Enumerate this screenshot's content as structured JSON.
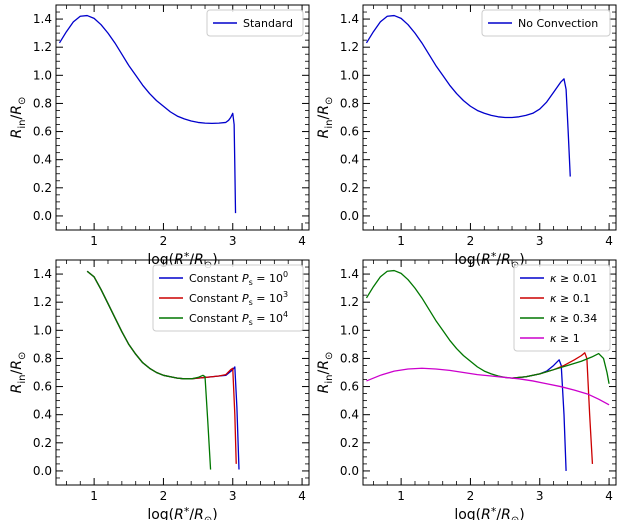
{
  "chart_data": [
    {
      "type": "line",
      "xlabel": "log(R*/R☉)",
      "ylabel": "Rin/R☉",
      "xlim": [
        0.45,
        4.1
      ],
      "ylim": [
        -0.1,
        1.5
      ],
      "xticks": [
        "1",
        "2",
        "3",
        "4"
      ],
      "yticks": [
        "0.0",
        "0.2",
        "0.4",
        "0.6",
        "0.8",
        "1.0",
        "1.2",
        "1.4"
      ],
      "legend_position": "top-right",
      "series": [
        {
          "name": "Standard",
          "color": "#0000cc",
          "points": [
            [
              0.5,
              1.23
            ],
            [
              0.6,
              1.31
            ],
            [
              0.7,
              1.38
            ],
            [
              0.8,
              1.42
            ],
            [
              0.9,
              1.425
            ],
            [
              1.0,
              1.405
            ],
            [
              1.1,
              1.36
            ],
            [
              1.2,
              1.3
            ],
            [
              1.3,
              1.23
            ],
            [
              1.4,
              1.15
            ],
            [
              1.5,
              1.07
            ],
            [
              1.6,
              1.0
            ],
            [
              1.7,
              0.93
            ],
            [
              1.8,
              0.87
            ],
            [
              1.9,
              0.82
            ],
            [
              2.0,
              0.78
            ],
            [
              2.1,
              0.74
            ],
            [
              2.2,
              0.71
            ],
            [
              2.3,
              0.69
            ],
            [
              2.4,
              0.675
            ],
            [
              2.5,
              0.665
            ],
            [
              2.6,
              0.66
            ],
            [
              2.7,
              0.658
            ],
            [
              2.8,
              0.66
            ],
            [
              2.9,
              0.665
            ],
            [
              2.94,
              0.68
            ],
            [
              2.97,
              0.7
            ],
            [
              3.0,
              0.73
            ],
            [
              3.02,
              0.65
            ],
            [
              3.03,
              0.35
            ],
            [
              3.04,
              0.02
            ]
          ]
        }
      ]
    },
    {
      "type": "line",
      "xlabel": "log(R*/R☉)",
      "ylabel": "Rin/R☉",
      "xlim": [
        0.45,
        4.1
      ],
      "ylim": [
        -0.1,
        1.5
      ],
      "xticks": [
        "1",
        "2",
        "3",
        "4"
      ],
      "yticks": [
        "0.0",
        "0.2",
        "0.4",
        "0.6",
        "0.8",
        "1.0",
        "1.2",
        "1.4"
      ],
      "legend_position": "top-right",
      "series": [
        {
          "name": "No Convection",
          "color": "#0000cc",
          "points": [
            [
              0.5,
              1.23
            ],
            [
              0.6,
              1.31
            ],
            [
              0.7,
              1.38
            ],
            [
              0.8,
              1.42
            ],
            [
              0.9,
              1.425
            ],
            [
              1.0,
              1.405
            ],
            [
              1.1,
              1.36
            ],
            [
              1.2,
              1.3
            ],
            [
              1.3,
              1.23
            ],
            [
              1.4,
              1.15
            ],
            [
              1.5,
              1.07
            ],
            [
              1.6,
              1.0
            ],
            [
              1.7,
              0.93
            ],
            [
              1.8,
              0.87
            ],
            [
              1.9,
              0.82
            ],
            [
              2.0,
              0.78
            ],
            [
              2.1,
              0.75
            ],
            [
              2.2,
              0.73
            ],
            [
              2.3,
              0.715
            ],
            [
              2.4,
              0.705
            ],
            [
              2.5,
              0.7
            ],
            [
              2.6,
              0.7
            ],
            [
              2.7,
              0.705
            ],
            [
              2.8,
              0.715
            ],
            [
              2.9,
              0.73
            ],
            [
              3.0,
              0.76
            ],
            [
              3.1,
              0.81
            ],
            [
              3.2,
              0.88
            ],
            [
              3.3,
              0.95
            ],
            [
              3.35,
              0.975
            ],
            [
              3.38,
              0.9
            ],
            [
              3.41,
              0.6
            ],
            [
              3.44,
              0.28
            ]
          ]
        }
      ]
    },
    {
      "type": "line",
      "xlabel": "log(R*/R☉)",
      "ylabel": "Rin/R☉",
      "xlim": [
        0.45,
        4.1
      ],
      "ylim": [
        -0.1,
        1.5
      ],
      "xticks": [
        "1",
        "2",
        "3",
        "4"
      ],
      "yticks": [
        "0.0",
        "0.2",
        "0.4",
        "0.6",
        "0.8",
        "1.0",
        "1.2",
        "1.4"
      ],
      "legend_position": "top-right",
      "series": [
        {
          "name": "Constant P_s = 10^0",
          "legend_prefix": "Constant ",
          "legend_var": "P",
          "legend_sub": "s",
          "legend_eq": " = 10",
          "legend_exp": "0",
          "color": "#0000cc",
          "points": [
            [
              0.9,
              1.42
            ],
            [
              1.0,
              1.38
            ],
            [
              1.1,
              1.29
            ],
            [
              1.2,
              1.19
            ],
            [
              1.3,
              1.09
            ],
            [
              1.4,
              0.99
            ],
            [
              1.5,
              0.9
            ],
            [
              1.6,
              0.83
            ],
            [
              1.7,
              0.77
            ],
            [
              1.8,
              0.73
            ],
            [
              1.9,
              0.7
            ],
            [
              2.0,
              0.68
            ],
            [
              2.1,
              0.67
            ],
            [
              2.2,
              0.66
            ],
            [
              2.3,
              0.655
            ],
            [
              2.4,
              0.655
            ],
            [
              2.5,
              0.66
            ],
            [
              2.6,
              0.665
            ],
            [
              2.7,
              0.67
            ],
            [
              2.8,
              0.675
            ],
            [
              2.9,
              0.68
            ],
            [
              3.0,
              0.72
            ],
            [
              3.03,
              0.74
            ],
            [
              3.06,
              0.45
            ],
            [
              3.09,
              0.01
            ]
          ]
        },
        {
          "name": "Constant P_s = 10^3",
          "legend_prefix": "Constant ",
          "legend_var": "P",
          "legend_sub": "s",
          "legend_eq": " = 10",
          "legend_exp": "3",
          "color": "#cc0000",
          "points": [
            [
              0.9,
              1.42
            ],
            [
              1.0,
              1.38
            ],
            [
              1.1,
              1.29
            ],
            [
              1.2,
              1.19
            ],
            [
              1.3,
              1.09
            ],
            [
              1.4,
              0.99
            ],
            [
              1.5,
              0.9
            ],
            [
              1.6,
              0.83
            ],
            [
              1.7,
              0.77
            ],
            [
              1.8,
              0.73
            ],
            [
              1.9,
              0.7
            ],
            [
              2.0,
              0.68
            ],
            [
              2.1,
              0.67
            ],
            [
              2.2,
              0.66
            ],
            [
              2.3,
              0.655
            ],
            [
              2.4,
              0.655
            ],
            [
              2.5,
              0.66
            ],
            [
              2.6,
              0.665
            ],
            [
              2.7,
              0.67
            ],
            [
              2.8,
              0.675
            ],
            [
              2.9,
              0.685
            ],
            [
              2.97,
              0.72
            ],
            [
              3.0,
              0.73
            ],
            [
              3.03,
              0.4
            ],
            [
              3.05,
              0.05
            ]
          ]
        },
        {
          "name": "Constant P_s = 10^4",
          "legend_prefix": "Constant ",
          "legend_var": "P",
          "legend_sub": "s",
          "legend_eq": " = 10",
          "legend_exp": "4",
          "color": "#007700",
          "points": [
            [
              0.9,
              1.42
            ],
            [
              1.0,
              1.38
            ],
            [
              1.1,
              1.29
            ],
            [
              1.2,
              1.19
            ],
            [
              1.3,
              1.09
            ],
            [
              1.4,
              0.99
            ],
            [
              1.5,
              0.9
            ],
            [
              1.6,
              0.83
            ],
            [
              1.7,
              0.77
            ],
            [
              1.8,
              0.73
            ],
            [
              1.9,
              0.7
            ],
            [
              2.0,
              0.68
            ],
            [
              2.1,
              0.67
            ],
            [
              2.2,
              0.66
            ],
            [
              2.3,
              0.655
            ],
            [
              2.4,
              0.655
            ],
            [
              2.5,
              0.665
            ],
            [
              2.57,
              0.68
            ],
            [
              2.6,
              0.67
            ],
            [
              2.64,
              0.35
            ],
            [
              2.68,
              0.01
            ]
          ]
        }
      ]
    },
    {
      "type": "line",
      "xlabel": "log(R*/R☉)",
      "ylabel": "Rin/R☉",
      "xlim": [
        0.45,
        4.1
      ],
      "ylim": [
        -0.1,
        1.5
      ],
      "xticks": [
        "1",
        "2",
        "3",
        "4"
      ],
      "yticks": [
        "0.0",
        "0.2",
        "0.4",
        "0.6",
        "0.8",
        "1.0",
        "1.2",
        "1.4"
      ],
      "legend_position": "top-right",
      "series": [
        {
          "name": "κ ≥ 0.01",
          "legend_var": "κ",
          "legend_eq": " ≥ 0.01",
          "color": "#0000cc",
          "points": [
            [
              2.6,
              0.66
            ],
            [
              2.8,
              0.67
            ],
            [
              3.0,
              0.69
            ],
            [
              3.1,
              0.71
            ],
            [
              3.2,
              0.75
            ],
            [
              3.28,
              0.79
            ],
            [
              3.31,
              0.75
            ],
            [
              3.35,
              0.4
            ],
            [
              3.38,
              0.0
            ]
          ]
        },
        {
          "name": "κ ≥ 0.1",
          "legend_var": "κ",
          "legend_eq": " ≥ 0.1",
          "color": "#cc0000",
          "points": [
            [
              2.6,
              0.66
            ],
            [
              2.8,
              0.67
            ],
            [
              3.0,
              0.69
            ],
            [
              3.2,
              0.72
            ],
            [
              3.35,
              0.75
            ],
            [
              3.5,
              0.79
            ],
            [
              3.6,
              0.82
            ],
            [
              3.65,
              0.84
            ],
            [
              3.68,
              0.8
            ],
            [
              3.72,
              0.4
            ],
            [
              3.76,
              0.05
            ]
          ]
        },
        {
          "name": "κ ≥ 0.34",
          "legend_var": "κ",
          "legend_eq": " ≥ 0.34",
          "color": "#007700",
          "points": [
            [
              0.5,
              1.23
            ],
            [
              0.6,
              1.31
            ],
            [
              0.7,
              1.38
            ],
            [
              0.8,
              1.42
            ],
            [
              0.9,
              1.425
            ],
            [
              1.0,
              1.405
            ],
            [
              1.1,
              1.36
            ],
            [
              1.2,
              1.3
            ],
            [
              1.3,
              1.23
            ],
            [
              1.4,
              1.15
            ],
            [
              1.5,
              1.07
            ],
            [
              1.6,
              1.0
            ],
            [
              1.7,
              0.93
            ],
            [
              1.8,
              0.87
            ],
            [
              1.9,
              0.82
            ],
            [
              2.0,
              0.78
            ],
            [
              2.1,
              0.74
            ],
            [
              2.2,
              0.71
            ],
            [
              2.3,
              0.69
            ],
            [
              2.4,
              0.675
            ],
            [
              2.5,
              0.665
            ],
            [
              2.6,
              0.66
            ],
            [
              2.8,
              0.67
            ],
            [
              3.0,
              0.69
            ],
            [
              3.2,
              0.72
            ],
            [
              3.4,
              0.75
            ],
            [
              3.6,
              0.78
            ],
            [
              3.75,
              0.81
            ],
            [
              3.85,
              0.835
            ],
            [
              3.92,
              0.8
            ],
            [
              3.97,
              0.7
            ],
            [
              4.0,
              0.62
            ]
          ]
        },
        {
          "name": "κ ≥ 1",
          "legend_var": "κ",
          "legend_eq": " ≥ 1",
          "color": "#cc00cc",
          "points": [
            [
              0.5,
              0.64
            ],
            [
              0.7,
              0.68
            ],
            [
              0.9,
              0.71
            ],
            [
              1.1,
              0.725
            ],
            [
              1.3,
              0.73
            ],
            [
              1.5,
              0.725
            ],
            [
              1.7,
              0.715
            ],
            [
              1.9,
              0.7
            ],
            [
              2.1,
              0.685
            ],
            [
              2.3,
              0.675
            ],
            [
              2.5,
              0.665
            ],
            [
              2.7,
              0.655
            ],
            [
              2.9,
              0.64
            ],
            [
              3.1,
              0.62
            ],
            [
              3.3,
              0.6
            ],
            [
              3.5,
              0.575
            ],
            [
              3.7,
              0.545
            ],
            [
              3.85,
              0.51
            ],
            [
              4.0,
              0.47
            ]
          ]
        }
      ]
    }
  ]
}
